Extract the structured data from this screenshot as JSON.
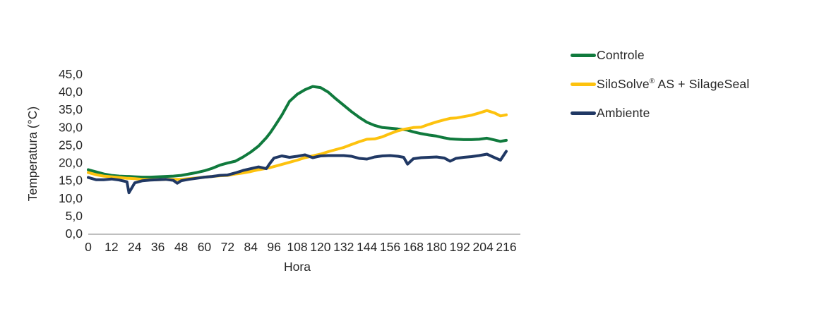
{
  "page": {
    "background": "#FFFFFF"
  },
  "chart_data": {
    "type": "line",
    "title": "",
    "xlabel": "Hora",
    "ylabel": "Temperatura (°C)",
    "xlim": [
      0,
      216
    ],
    "ylim": [
      0,
      45
    ],
    "grid": false,
    "legend_position": "right-top",
    "axis_color": "#BFBFBF",
    "text_color": "#262626",
    "x_tick_values": [
      0,
      12,
      24,
      36,
      48,
      60,
      72,
      84,
      96,
      108,
      120,
      132,
      144,
      156,
      168,
      180,
      192,
      204,
      216
    ],
    "x_tick_labels": [
      "0",
      "12",
      "24",
      "36",
      "48",
      "60",
      "72",
      "84",
      "96",
      "108",
      "120",
      "132",
      "144",
      "156",
      "168",
      "180",
      "192",
      "204",
      "216"
    ],
    "y_tick_values": [
      0,
      5,
      10,
      15,
      20,
      25,
      30,
      35,
      40,
      45
    ],
    "y_tick_labels": [
      "0,0",
      "5,0",
      "10,0",
      "15,0",
      "20,0",
      "25,0",
      "30,0",
      "35,0",
      "40,0",
      "45,0"
    ],
    "x": [
      0,
      4,
      8,
      12,
      16,
      20,
      21,
      24,
      28,
      32,
      36,
      40,
      44,
      46,
      48,
      52,
      56,
      60,
      64,
      68,
      72,
      76,
      80,
      84,
      88,
      92,
      94,
      96,
      100,
      104,
      108,
      112,
      116,
      120,
      124,
      128,
      132,
      136,
      140,
      144,
      148,
      152,
      156,
      160,
      163,
      165,
      168,
      172,
      176,
      180,
      184,
      187,
      190,
      194,
      198,
      202,
      206,
      210,
      213,
      216
    ],
    "series": [
      {
        "name": "Controle",
        "color": "#107A3D",
        "values": [
          18.0,
          17.4,
          16.8,
          16.4,
          16.2,
          16.1,
          16.1,
          16.0,
          15.9,
          15.9,
          16.0,
          16.1,
          16.2,
          16.3,
          16.4,
          16.8,
          17.2,
          17.7,
          18.4,
          19.3,
          19.9,
          20.4,
          21.6,
          23.0,
          24.7,
          27.0,
          28.4,
          30.0,
          33.4,
          37.3,
          39.3,
          40.6,
          41.5,
          41.2,
          39.9,
          38.0,
          36.2,
          34.4,
          32.8,
          31.4,
          30.5,
          29.9,
          29.7,
          29.5,
          29.3,
          29.2,
          28.7,
          28.2,
          27.8,
          27.5,
          27.0,
          26.7,
          26.6,
          26.5,
          26.5,
          26.6,
          26.9,
          26.4,
          26.0,
          26.3
        ]
      },
      {
        "name": "SiloSolve® AS + SilageSeal",
        "color": "#FDC20E",
        "values": [
          17.2,
          16.6,
          16.2,
          16.0,
          15.8,
          15.6,
          15.6,
          15.5,
          15.3,
          15.2,
          15.2,
          15.3,
          15.3,
          15.3,
          15.3,
          15.5,
          15.7,
          15.9,
          16.1,
          16.3,
          16.4,
          16.8,
          17.1,
          17.5,
          18.0,
          18.4,
          18.6,
          18.9,
          19.5,
          20.1,
          20.7,
          21.4,
          21.9,
          22.4,
          23.1,
          23.7,
          24.3,
          25.1,
          25.9,
          26.6,
          26.7,
          27.3,
          28.2,
          29.0,
          29.4,
          29.6,
          29.9,
          30.0,
          30.8,
          31.5,
          32.1,
          32.5,
          32.6,
          33.0,
          33.4,
          34.0,
          34.7,
          34.0,
          33.2,
          33.5
        ]
      },
      {
        "name": "Ambiente",
        "color": "#203864",
        "values": [
          15.8,
          15.2,
          15.2,
          15.4,
          15.1,
          14.6,
          11.5,
          14.3,
          14.9,
          15.1,
          15.2,
          15.3,
          15.0,
          14.2,
          14.9,
          15.3,
          15.6,
          15.9,
          16.1,
          16.4,
          16.5,
          17.1,
          17.8,
          18.3,
          18.8,
          18.3,
          19.9,
          21.3,
          21.9,
          21.5,
          21.8,
          22.2,
          21.4,
          21.9,
          22.0,
          22.0,
          22.0,
          21.8,
          21.2,
          21.0,
          21.6,
          21.9,
          22.0,
          21.8,
          21.5,
          19.6,
          21.1,
          21.4,
          21.5,
          21.6,
          21.3,
          20.4,
          21.2,
          21.5,
          21.7,
          22.0,
          22.4,
          21.4,
          20.7,
          23.2
        ]
      }
    ]
  }
}
